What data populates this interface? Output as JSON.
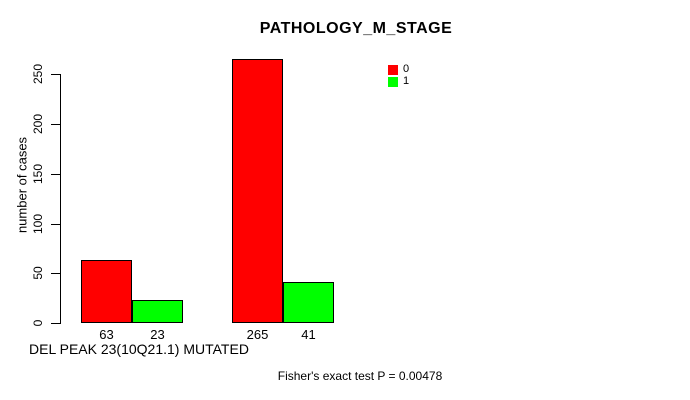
{
  "chart_data": {
    "type": "bar",
    "title": "PATHOLOGY_M_STAGE",
    "ylabel": "number of cases",
    "xlabel": "DEL PEAK 23(10Q21.1) MUTATED",
    "footnote": "Fisher's exact test P = 0.00478",
    "ylim": [
      0,
      250
    ],
    "yticks": [
      0,
      50,
      100,
      150,
      200,
      250
    ],
    "grid": false,
    "legend": {
      "position": "top-right",
      "entries": [
        {
          "label": "0",
          "color": "#ff0000"
        },
        {
          "label": "1",
          "color": "#00ff00"
        }
      ]
    },
    "groups": [
      {
        "bars": [
          {
            "series": "0",
            "value": 63,
            "label": "63",
            "color": "#ff0000"
          },
          {
            "series": "1",
            "value": 23,
            "label": "23",
            "color": "#00ff00"
          }
        ]
      },
      {
        "bars": [
          {
            "series": "0",
            "value": 265,
            "label": "265",
            "color": "#ff0000"
          },
          {
            "series": "1",
            "value": 41,
            "label": "41",
            "color": "#00ff00"
          }
        ]
      }
    ],
    "colors": {
      "background": "#ffffff",
      "axis": "#000000",
      "text": "#000000"
    }
  }
}
